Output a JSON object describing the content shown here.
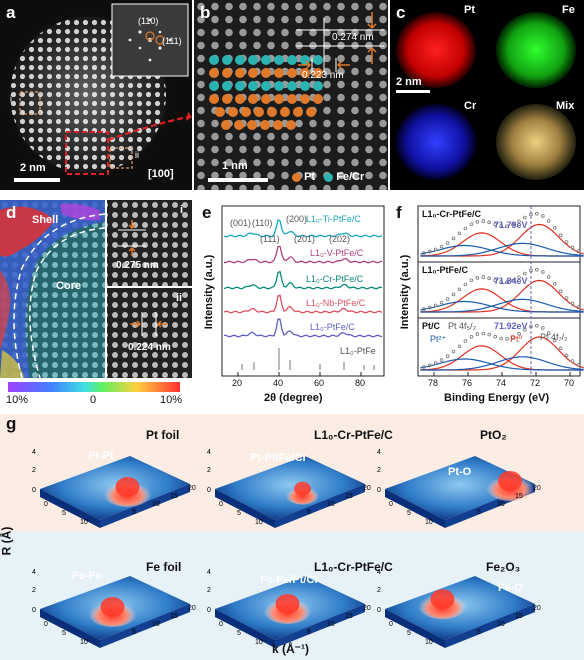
{
  "panel_a": {
    "label": "a",
    "inset_labels": [
      "(110)",
      "(111)"
    ],
    "scale": "2 nm",
    "zone_axis": "[100]",
    "box_labels": [
      "i",
      "ii"
    ]
  },
  "panel_b": {
    "label": "b",
    "d1": "0.274 nm",
    "d2": "0.223 nm",
    "scale": "1 nm",
    "legend": [
      "Pt",
      "Fe/Cr"
    ],
    "colors": {
      "pt": "#e07a2a",
      "fecr": "#2ab3b0"
    }
  },
  "panel_c": {
    "label": "c",
    "maps": [
      "Pt",
      "Fe",
      "Cr",
      "Mix"
    ],
    "scale": "2 nm"
  },
  "panel_d": {
    "label": "d",
    "shell": "Shell",
    "core": "Core",
    "inset_i": "i",
    "inset_ii": "ii",
    "d_i": "0.275 nm",
    "d_ii": "0.224 nm",
    "colorbar": [
      "10%",
      "0",
      "10%"
    ]
  },
  "panel_e": {
    "label": "e",
    "peak_labels": [
      "(001)",
      "(110)",
      "(200)",
      "(111)",
      "(201)",
      "(202)"
    ],
    "series_labels": [
      "L1₀-Ti-PtFe/C",
      "L1₀-V-PtFe/C",
      "L1₀-Cr-PtFe/C",
      "L1₀-Nb-PtFe/C",
      "L1₀-PtFe/C"
    ],
    "ref_label": "L1₀-PtFe",
    "ylabel": "Intensity (a.u.)",
    "xlabel": "2θ (degree)",
    "xticks": [
      "20",
      "40",
      "60",
      "80"
    ]
  },
  "panel_f": {
    "label": "f",
    "sub": [
      {
        "name": "L1₀-Cr-PtFe/C",
        "peak": "71.79eV"
      },
      {
        "name": "L1₀-PtFe/C",
        "peak": "71.84eV"
      },
      {
        "name": "Pt/C",
        "peak": "71.92eV"
      }
    ],
    "pt_labels": [
      "Pt 4f₅/₂",
      "Pt 4f₇/₂",
      "Pt²⁺",
      "Pt⁰"
    ],
    "ylabel": "Intensity (a.u.)",
    "xlabel": "Binding Energy (eV)",
    "xticks": [
      "78",
      "76",
      "74",
      "72",
      "70"
    ]
  },
  "panel_g": {
    "label": "g",
    "top": [
      {
        "peak": "Pt-Pt",
        "name": "Pt foil"
      },
      {
        "peak": "Pt-Pt/Fe/Cr",
        "name": "L1₀-Cr-PtFe/C"
      },
      {
        "peak": "Pt-O",
        "name": "PtO₂"
      }
    ],
    "bottom": [
      {
        "peak": "Fe-Fe",
        "name": "Fe foil"
      },
      {
        "peak": "Fe-Fe/Pt/Cr",
        "name": "L1₀-Cr-PtFe/C"
      },
      {
        "peak": "Fe-O",
        "name": "Fe₂O₃"
      }
    ],
    "ylabel": "R (Å)",
    "xlabel": "k (Å⁻¹)",
    "r_ticks": [
      "0",
      "2",
      "4"
    ],
    "k_ticks": [
      "0",
      "5",
      "10",
      "15",
      "20"
    ]
  }
}
